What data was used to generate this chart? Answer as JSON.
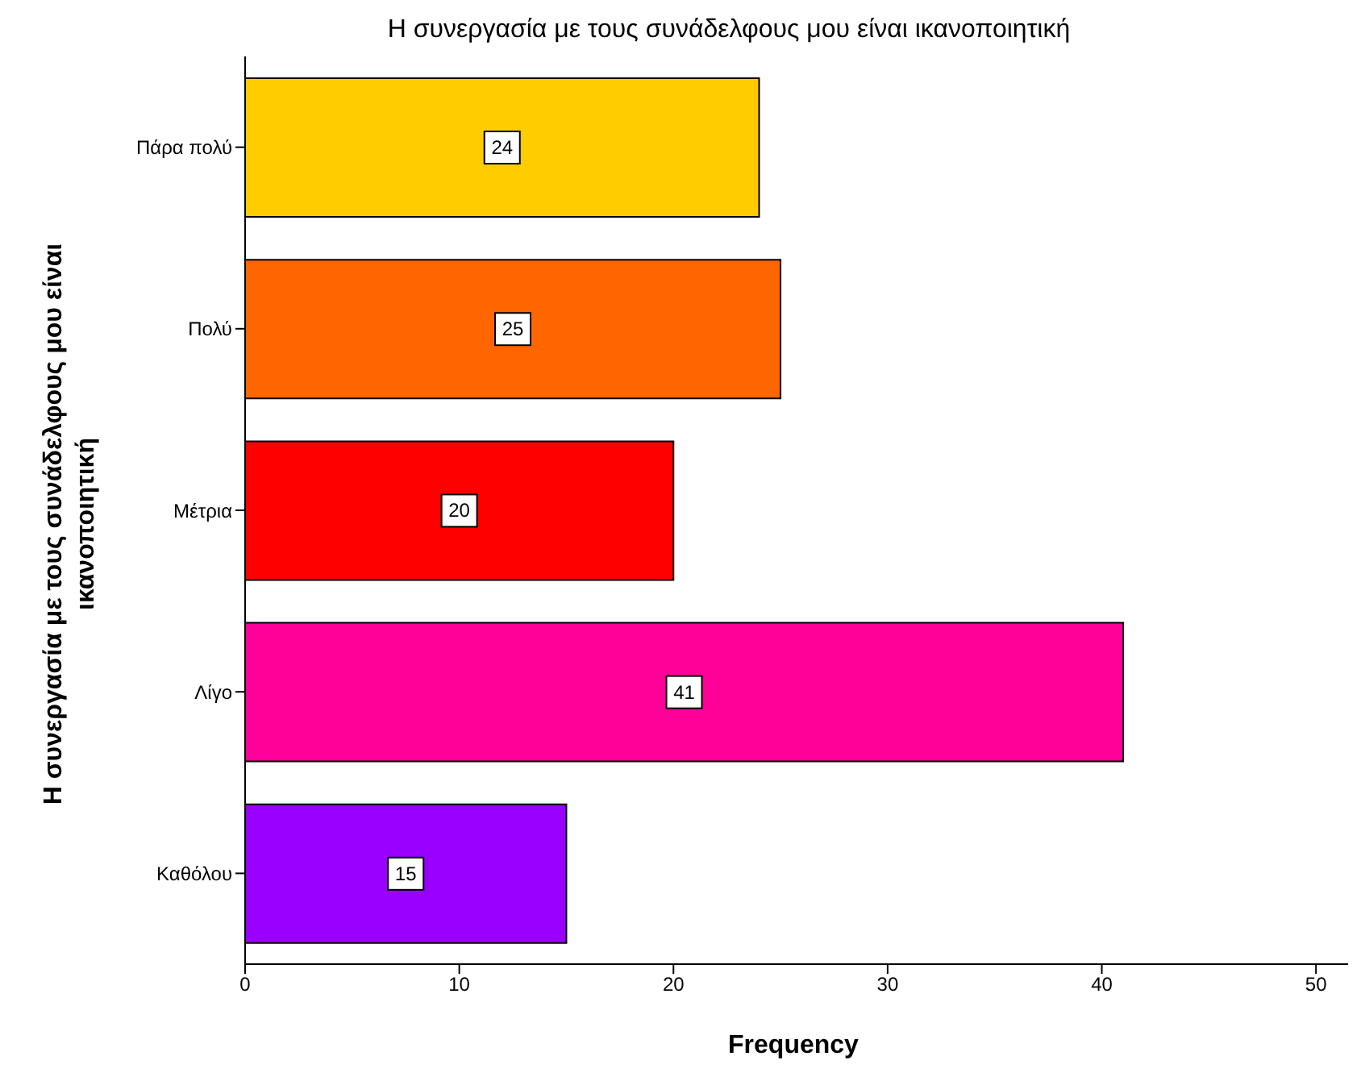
{
  "chart_data": {
    "type": "bar",
    "orientation": "horizontal",
    "title": "Η συνεργασία με τους συνάδελφους μου είναι ικανοποιητική",
    "xlabel": "Frequency",
    "ylabel": "Η συνεργασία με τους συνάδελφους μου είναι ικανοποιητική",
    "categories": [
      "Πάρα πολύ",
      "Πολύ",
      "Μέτρια",
      "Λίγο",
      "Καθόλου"
    ],
    "values": [
      24,
      25,
      20,
      41,
      15
    ],
    "colors": [
      "#ffcc00",
      "#ff6600",
      "#ff0000",
      "#ff0099",
      "#9900ff"
    ],
    "xlim": [
      0,
      51.5
    ],
    "xticks": [
      0,
      10,
      20,
      30,
      40,
      50
    ],
    "grid": false,
    "data_labels": true
  }
}
